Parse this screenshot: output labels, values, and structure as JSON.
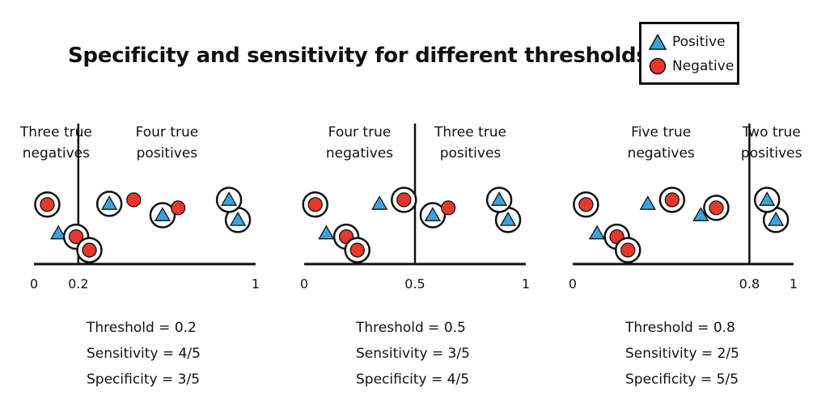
{
  "title": "Specificity and sensitivity for different thresholds",
  "legend": {
    "positive_label": "Positive",
    "negative_label": "Negative",
    "positive_color": "#3ba3dc",
    "negative_color": "#e8382d"
  },
  "panels": [
    {
      "threshold": 0.2,
      "left_label": [
        "Three true",
        "negatives"
      ],
      "right_label": [
        "Four true",
        "positives"
      ],
      "ticks": [
        "0",
        "0.2",
        "1"
      ],
      "stats": [
        "Threshold = 0.2",
        "Sensitivity = 4/5",
        "Specificity = 3/5"
      ],
      "points": [
        {
          "type": "positive",
          "x": 0.11,
          "y": 0.35,
          "circled": false
        },
        {
          "type": "negative",
          "x": 0.19,
          "y": 0.3,
          "circled": true
        },
        {
          "type": "negative",
          "x": 0.06,
          "y": 0.78,
          "circled": true
        },
        {
          "type": "negative",
          "x": 0.25,
          "y": 0.1,
          "circled": true
        },
        {
          "type": "positive",
          "x": 0.34,
          "y": 0.79,
          "circled": true
        },
        {
          "type": "negative",
          "x": 0.45,
          "y": 0.85,
          "circled": false
        },
        {
          "type": "positive",
          "x": 0.58,
          "y": 0.62,
          "circled": true
        },
        {
          "type": "negative",
          "x": 0.65,
          "y": 0.73,
          "circled": false
        },
        {
          "type": "positive",
          "x": 0.92,
          "y": 0.55,
          "circled": true
        },
        {
          "type": "positive",
          "x": 0.88,
          "y": 0.85,
          "circled": true
        }
      ]
    },
    {
      "threshold": 0.5,
      "left_label": [
        "Four true",
        "negatives"
      ],
      "right_label": [
        "Three true",
        "positives"
      ],
      "ticks": [
        "0",
        "0.5",
        "1"
      ],
      "stats": [
        "Threshold = 0.5",
        "Sensitivity = 3/5",
        "Specificity = 4/5"
      ],
      "points": [
        {
          "type": "positive",
          "x": 0.1,
          "y": 0.35,
          "circled": false
        },
        {
          "type": "negative",
          "x": 0.19,
          "y": 0.3,
          "circled": true
        },
        {
          "type": "negative",
          "x": 0.05,
          "y": 0.78,
          "circled": true
        },
        {
          "type": "negative",
          "x": 0.24,
          "y": 0.1,
          "circled": true
        },
        {
          "type": "positive",
          "x": 0.34,
          "y": 0.79,
          "circled": false
        },
        {
          "type": "negative",
          "x": 0.45,
          "y": 0.85,
          "circled": true
        },
        {
          "type": "positive",
          "x": 0.58,
          "y": 0.62,
          "circled": true
        },
        {
          "type": "negative",
          "x": 0.65,
          "y": 0.73,
          "circled": false
        },
        {
          "type": "positive",
          "x": 0.92,
          "y": 0.55,
          "circled": true
        },
        {
          "type": "positive",
          "x": 0.88,
          "y": 0.85,
          "circled": true
        }
      ]
    },
    {
      "threshold": 0.8,
      "left_label": [
        "Five true",
        "negatives"
      ],
      "right_label": [
        "Two true",
        "positives"
      ],
      "ticks": [
        "0",
        "0.8",
        "1"
      ],
      "stats": [
        "Threshold = 0.8",
        "Sensitivity = 2/5",
        "Specificity = 5/5"
      ],
      "points": [
        {
          "type": "positive",
          "x": 0.11,
          "y": 0.35,
          "circled": false
        },
        {
          "type": "negative",
          "x": 0.2,
          "y": 0.3,
          "circled": true
        },
        {
          "type": "negative",
          "x": 0.06,
          "y": 0.78,
          "circled": true
        },
        {
          "type": "negative",
          "x": 0.25,
          "y": 0.1,
          "circled": true
        },
        {
          "type": "positive",
          "x": 0.34,
          "y": 0.79,
          "circled": false
        },
        {
          "type": "negative",
          "x": 0.45,
          "y": 0.85,
          "circled": true
        },
        {
          "type": "positive",
          "x": 0.58,
          "y": 0.62,
          "circled": false
        },
        {
          "type": "negative",
          "x": 0.65,
          "y": 0.73,
          "circled": true
        },
        {
          "type": "positive",
          "x": 0.92,
          "y": 0.55,
          "circled": true
        },
        {
          "type": "positive",
          "x": 0.88,
          "y": 0.85,
          "circled": true
        }
      ]
    }
  ]
}
